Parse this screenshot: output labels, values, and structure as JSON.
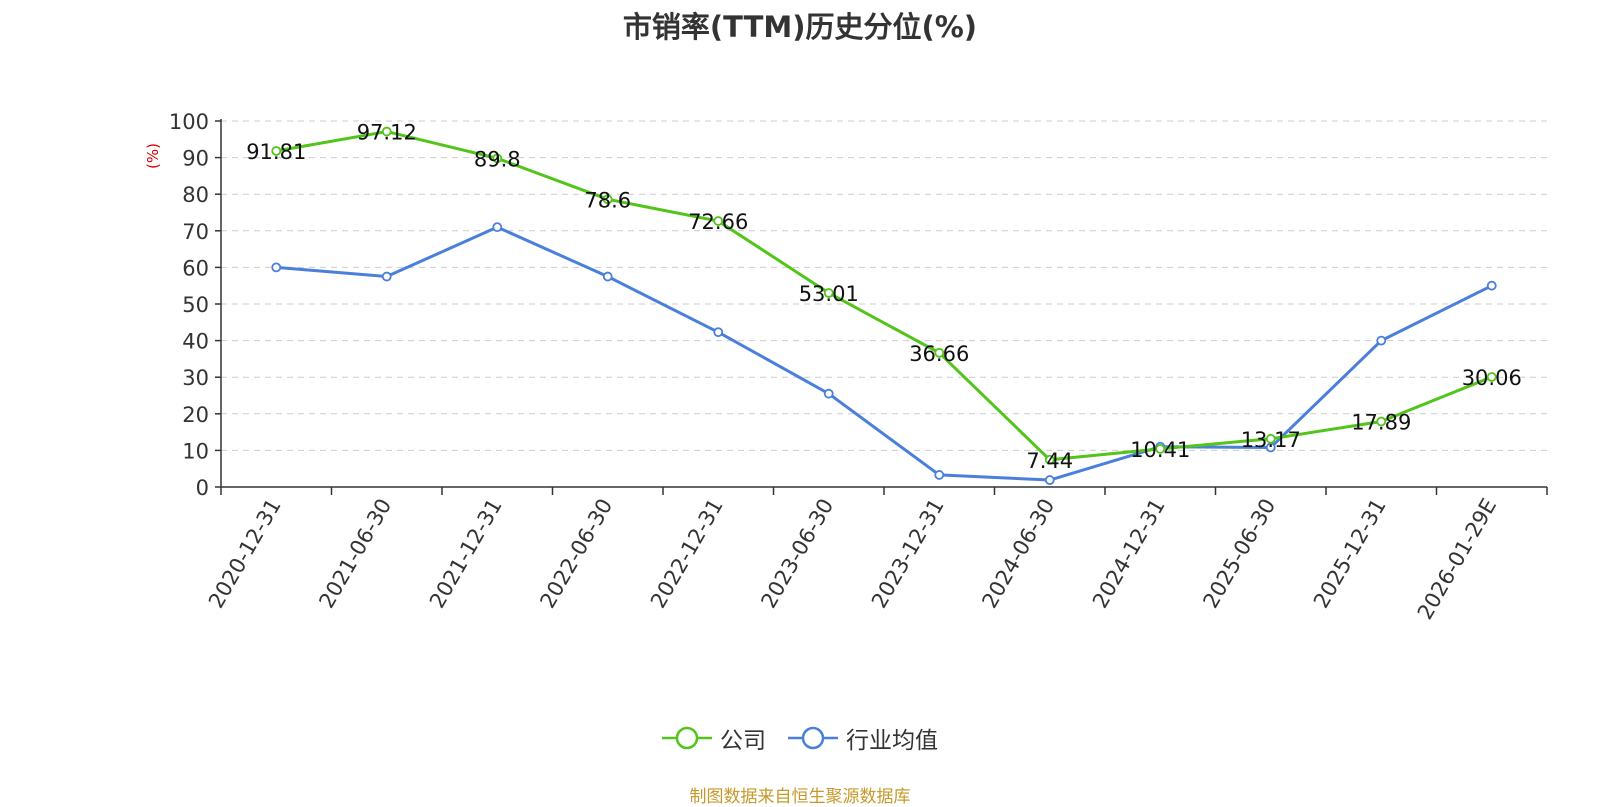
{
  "chart_data": {
    "type": "line",
    "title": "市销率(TTM)历史分位(%)",
    "ylabel": "(%)",
    "xlabel": "",
    "ylim": [
      0,
      100
    ],
    "yticks": [
      0,
      10,
      20,
      30,
      40,
      50,
      60,
      70,
      80,
      90,
      100
    ],
    "categories": [
      "2020-12-31",
      "2021-06-30",
      "2021-12-31",
      "2022-06-30",
      "2022-12-31",
      "2023-06-30",
      "2023-12-31",
      "2024-06-30",
      "2024-12-31",
      "2025-06-30",
      "2025-12-31",
      "2026-01-29E"
    ],
    "grid": true,
    "legend_position": "bottom-center",
    "series": [
      {
        "name": "公司",
        "color": "#52c41a",
        "values": [
          91.81,
          97.12,
          89.8,
          78.6,
          72.66,
          53.01,
          36.66,
          7.44,
          10.41,
          13.17,
          17.89,
          30.06
        ],
        "labels": [
          "91.81",
          "97.12",
          "89.8",
          "78.6",
          "72.66",
          "53.01",
          "36.66",
          "7.44",
          "10.41",
          "13.17",
          "17.89",
          "30.06"
        ]
      },
      {
        "name": "行业均值",
        "color": "#4a7fdc",
        "values": [
          60,
          57.5,
          71,
          57.5,
          42.3,
          25.5,
          3.3,
          1.9,
          11,
          10.8,
          40,
          55
        ]
      }
    ]
  },
  "source_note": "制图数据来自恒生聚源数据库"
}
